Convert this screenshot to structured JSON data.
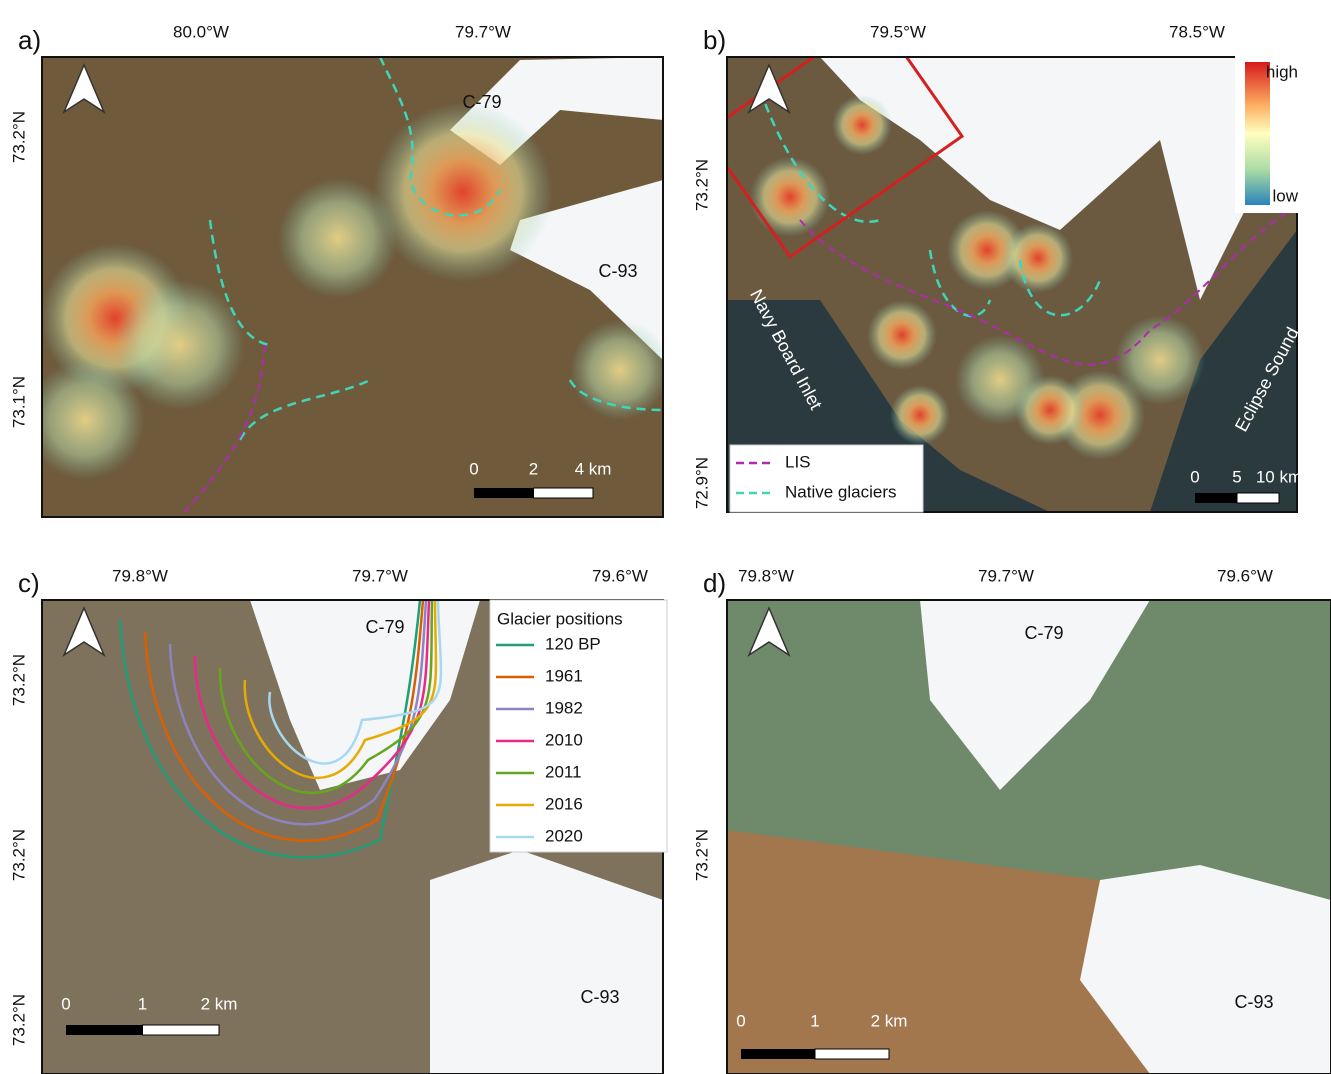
{
  "panels": [
    {
      "label": "a)",
      "lon_ticks": [
        "80.0°W",
        "79.7°W"
      ],
      "lat_ticks": [
        "73.2°N",
        "73.1°N"
      ],
      "places": [
        "C-79",
        "C-93"
      ],
      "scale": [
        "0",
        "2",
        "4 km"
      ]
    },
    {
      "label": "b)",
      "lon_ticks": [
        "79.5°W",
        "78.5°W"
      ],
      "lat_ticks": [
        "73.2°N",
        "72.9°N"
      ],
      "places": [
        "Navy Board Inlet",
        "Eclipse Sound"
      ],
      "scale": [
        "0",
        "5",
        "10 km"
      ],
      "colorbar": [
        "high",
        "low"
      ],
      "legend": [
        {
          "name": "LIS",
          "color": "#b02ab0"
        },
        {
          "name": "Native glaciers",
          "color": "#3fd6b8"
        }
      ]
    },
    {
      "label": "c)",
      "lon_ticks": [
        "79.8°W",
        "79.7°W",
        "79.6°W"
      ],
      "lat_ticks": [
        "73.2°N",
        "73.2°N",
        "73.2°N"
      ],
      "places": [
        "C-79",
        "C-93"
      ],
      "scale": [
        "0",
        "1",
        "2 km"
      ],
      "legend_title": "Glacier positions",
      "legend": [
        {
          "name": "120 BP",
          "color": "#1f9e77"
        },
        {
          "name": "1961",
          "color": "#d95f02"
        },
        {
          "name": "1982",
          "color": "#8c84c0"
        },
        {
          "name": "2010",
          "color": "#e7298a"
        },
        {
          "name": "2011",
          "color": "#66a61e"
        },
        {
          "name": "2016",
          "color": "#e6ab02"
        },
        {
          "name": "2020",
          "color": "#a6d8f0"
        }
      ]
    },
    {
      "label": "d)",
      "lon_ticks": [
        "79.8°W",
        "79.7°W",
        "79.6°W"
      ],
      "lat_ticks": [
        "73.2°N"
      ],
      "places": [
        "C-79",
        "C-93"
      ],
      "scale": [
        "0",
        "1",
        "2 km"
      ]
    }
  ]
}
